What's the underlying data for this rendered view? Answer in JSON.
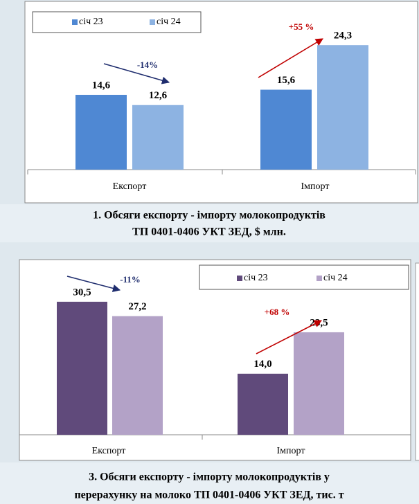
{
  "chart_data": [
    {
      "type": "bar",
      "title": [
        "1. Обсяги експорту - імпорту молокопродуктів",
        "ТП  0401-0406 УКТ ЗЕД, $ млн."
      ],
      "categories": [
        "Експорт",
        "Імпорт"
      ],
      "series": [
        {
          "name": "січ 23",
          "color": "#4f88d3",
          "values": [
            14.6,
            15.6
          ],
          "value_labels": [
            "14,6",
            "15,6"
          ]
        },
        {
          "name": "січ 24",
          "color": "#8db3e2",
          "values": [
            12.6,
            24.3
          ],
          "value_labels": [
            "12,6",
            "24,3"
          ]
        }
      ],
      "annotations": [
        {
          "text": "-14%",
          "color": "#1f2d6e"
        },
        {
          "text": "+55 %",
          "color": "#c00000"
        }
      ]
    },
    {
      "type": "bar",
      "title": [
        "3. Обсяги експорту - імпорту молокопродуктів у",
        "перерахунку на молоко ТП  0401-0406 УКТ ЗЕД, тис. т"
      ],
      "categories": [
        "Експорт",
        "Імпорт"
      ],
      "series": [
        {
          "name": "січ 23",
          "color": "#604a7b",
          "values": [
            30.5,
            14.0
          ],
          "value_labels": [
            "30,5",
            "14,0"
          ]
        },
        {
          "name": "січ 24",
          "color": "#b3a2c7",
          "values": [
            27.2,
            23.5
          ],
          "value_labels": [
            "27,2",
            "23,5"
          ]
        }
      ],
      "annotations": [
        {
          "text": "-11%",
          "color": "#1f2d6e"
        },
        {
          "text": "+68 %",
          "color": "#c00000"
        }
      ]
    }
  ]
}
